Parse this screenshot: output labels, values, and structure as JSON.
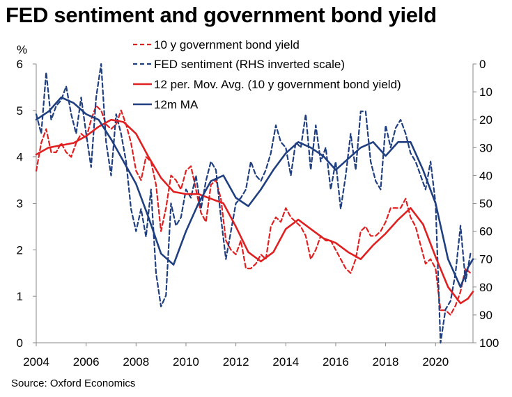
{
  "chart_data": {
    "type": "line",
    "title": "FED sentiment and government bond yield",
    "source": "Source: Oxford Economics",
    "y_left": {
      "unit_label": "%",
      "range": [
        0,
        6
      ],
      "ticks": [
        0,
        1,
        2,
        3,
        4,
        5,
        6
      ]
    },
    "y_right": {
      "label": "RHS inverted scale",
      "range": [
        0,
        100
      ],
      "inverted": true,
      "ticks": [
        0,
        10,
        20,
        30,
        40,
        50,
        60,
        70,
        80,
        90,
        100
      ]
    },
    "x": {
      "range": [
        2004,
        2021.5
      ],
      "ticks": [
        2004,
        2006,
        2008,
        2010,
        2012,
        2014,
        2016,
        2018,
        2020
      ]
    },
    "colors": {
      "red": "#e02020",
      "blue": "#1f3f80"
    },
    "series": [
      {
        "name": "10 y government bond yield",
        "axis": "left",
        "color": "#e02020",
        "style": "dashed",
        "points": [
          [
            2004.0,
            3.7
          ],
          [
            2004.2,
            4.3
          ],
          [
            2004.4,
            4.6
          ],
          [
            2004.6,
            4.1
          ],
          [
            2004.8,
            4.1
          ],
          [
            2005.0,
            4.3
          ],
          [
            2005.2,
            4.1
          ],
          [
            2005.4,
            4.0
          ],
          [
            2005.6,
            4.3
          ],
          [
            2005.8,
            4.5
          ],
          [
            2006.0,
            4.4
          ],
          [
            2006.2,
            4.8
          ],
          [
            2006.4,
            5.1
          ],
          [
            2006.6,
            5.0
          ],
          [
            2006.8,
            4.7
          ],
          [
            2007.0,
            4.6
          ],
          [
            2007.2,
            4.7
          ],
          [
            2007.4,
            5.0
          ],
          [
            2007.6,
            4.7
          ],
          [
            2007.8,
            4.3
          ],
          [
            2008.0,
            3.7
          ],
          [
            2008.2,
            3.5
          ],
          [
            2008.4,
            4.0
          ],
          [
            2008.6,
            3.9
          ],
          [
            2008.8,
            3.4
          ],
          [
            2009.0,
            2.4
          ],
          [
            2009.2,
            2.9
          ],
          [
            2009.4,
            3.6
          ],
          [
            2009.6,
            3.5
          ],
          [
            2009.8,
            3.3
          ],
          [
            2010.0,
            3.7
          ],
          [
            2010.2,
            3.8
          ],
          [
            2010.4,
            3.3
          ],
          [
            2010.6,
            2.8
          ],
          [
            2010.8,
            2.6
          ],
          [
            2011.0,
            3.4
          ],
          [
            2011.2,
            3.5
          ],
          [
            2011.4,
            3.1
          ],
          [
            2011.6,
            2.2
          ],
          [
            2011.8,
            2.0
          ],
          [
            2012.0,
            1.9
          ],
          [
            2012.2,
            2.2
          ],
          [
            2012.4,
            1.6
          ],
          [
            2012.6,
            1.6
          ],
          [
            2012.8,
            1.7
          ],
          [
            2013.0,
            1.9
          ],
          [
            2013.2,
            1.8
          ],
          [
            2013.4,
            2.5
          ],
          [
            2013.6,
            2.7
          ],
          [
            2013.8,
            2.6
          ],
          [
            2014.0,
            2.9
          ],
          [
            2014.2,
            2.7
          ],
          [
            2014.4,
            2.6
          ],
          [
            2014.6,
            2.5
          ],
          [
            2014.8,
            2.3
          ],
          [
            2015.0,
            1.8
          ],
          [
            2015.2,
            2.0
          ],
          [
            2015.4,
            2.3
          ],
          [
            2015.6,
            2.2
          ],
          [
            2015.8,
            2.2
          ],
          [
            2016.0,
            2.0
          ],
          [
            2016.2,
            1.8
          ],
          [
            2016.4,
            1.6
          ],
          [
            2016.6,
            1.5
          ],
          [
            2016.8,
            1.8
          ],
          [
            2017.0,
            2.4
          ],
          [
            2017.2,
            2.5
          ],
          [
            2017.4,
            2.3
          ],
          [
            2017.6,
            2.3
          ],
          [
            2017.8,
            2.4
          ],
          [
            2018.0,
            2.6
          ],
          [
            2018.2,
            2.9
          ],
          [
            2018.4,
            2.9
          ],
          [
            2018.6,
            2.9
          ],
          [
            2018.8,
            3.1
          ],
          [
            2019.0,
            2.7
          ],
          [
            2019.2,
            2.5
          ],
          [
            2019.4,
            2.1
          ],
          [
            2019.6,
            1.7
          ],
          [
            2019.8,
            1.8
          ],
          [
            2020.0,
            1.6
          ],
          [
            2020.2,
            0.7
          ],
          [
            2020.4,
            0.7
          ],
          [
            2020.6,
            0.6
          ],
          [
            2020.8,
            0.8
          ],
          [
            2021.0,
            1.1
          ],
          [
            2021.2,
            1.6
          ],
          [
            2021.4,
            1.5
          ]
        ]
      },
      {
        "name": "FED sentiment (RHS inverted scale)",
        "axis": "right",
        "color": "#1f3f80",
        "style": "dashed",
        "points": [
          [
            2004.0,
            18
          ],
          [
            2004.2,
            25
          ],
          [
            2004.4,
            3
          ],
          [
            2004.6,
            20
          ],
          [
            2004.8,
            15
          ],
          [
            2005.0,
            13
          ],
          [
            2005.2,
            8
          ],
          [
            2005.4,
            18
          ],
          [
            2005.6,
            25
          ],
          [
            2005.8,
            12
          ],
          [
            2006.0,
            25
          ],
          [
            2006.2,
            37
          ],
          [
            2006.4,
            12
          ],
          [
            2006.6,
            0
          ],
          [
            2006.8,
            28
          ],
          [
            2007.0,
            40
          ],
          [
            2007.2,
            18
          ],
          [
            2007.4,
            25
          ],
          [
            2007.6,
            35
          ],
          [
            2007.8,
            52
          ],
          [
            2008.0,
            60
          ],
          [
            2008.2,
            52
          ],
          [
            2008.4,
            62
          ],
          [
            2008.6,
            45
          ],
          [
            2008.8,
            75
          ],
          [
            2009.0,
            87
          ],
          [
            2009.2,
            83
          ],
          [
            2009.4,
            50
          ],
          [
            2009.6,
            58
          ],
          [
            2009.8,
            55
          ],
          [
            2010.0,
            45
          ],
          [
            2010.2,
            48
          ],
          [
            2010.4,
            40
          ],
          [
            2010.6,
            52
          ],
          [
            2010.8,
            42
          ],
          [
            2011.0,
            35
          ],
          [
            2011.2,
            38
          ],
          [
            2011.4,
            55
          ],
          [
            2011.6,
            70
          ],
          [
            2011.8,
            60
          ],
          [
            2012.0,
            50
          ],
          [
            2012.2,
            48
          ],
          [
            2012.4,
            45
          ],
          [
            2012.6,
            35
          ],
          [
            2012.8,
            40
          ],
          [
            2013.0,
            42
          ],
          [
            2013.2,
            38
          ],
          [
            2013.4,
            32
          ],
          [
            2013.6,
            22
          ],
          [
            2013.8,
            28
          ],
          [
            2014.0,
            30
          ],
          [
            2014.2,
            40
          ],
          [
            2014.4,
            28
          ],
          [
            2014.6,
            30
          ],
          [
            2014.8,
            18
          ],
          [
            2015.0,
            38
          ],
          [
            2015.2,
            22
          ],
          [
            2015.4,
            35
          ],
          [
            2015.6,
            30
          ],
          [
            2015.8,
            45
          ],
          [
            2016.0,
            35
          ],
          [
            2016.2,
            52
          ],
          [
            2016.4,
            40
          ],
          [
            2016.6,
            25
          ],
          [
            2016.8,
            38
          ],
          [
            2017.0,
            17
          ],
          [
            2017.2,
            17
          ],
          [
            2017.4,
            35
          ],
          [
            2017.6,
            42
          ],
          [
            2017.8,
            45
          ],
          [
            2018.0,
            22
          ],
          [
            2018.2,
            30
          ],
          [
            2018.4,
            23
          ],
          [
            2018.6,
            20
          ],
          [
            2018.8,
            25
          ],
          [
            2019.0,
            32
          ],
          [
            2019.2,
            35
          ],
          [
            2019.4,
            40
          ],
          [
            2019.6,
            45
          ],
          [
            2019.8,
            35
          ],
          [
            2020.0,
            50
          ],
          [
            2020.2,
            100
          ],
          [
            2020.4,
            88
          ],
          [
            2020.6,
            85
          ],
          [
            2020.8,
            75
          ],
          [
            2021.0,
            58
          ],
          [
            2021.2,
            78
          ],
          [
            2021.4,
            68
          ]
        ]
      },
      {
        "name": "12 per. Mov. Avg. (10 y government bond yield)",
        "axis": "left",
        "color": "#e02020",
        "style": "solid",
        "points": [
          [
            2004.0,
            4.05
          ],
          [
            2004.5,
            4.2
          ],
          [
            2005.0,
            4.25
          ],
          [
            2005.5,
            4.3
          ],
          [
            2006.0,
            4.45
          ],
          [
            2006.5,
            4.65
          ],
          [
            2007.0,
            4.8
          ],
          [
            2007.5,
            4.75
          ],
          [
            2008.0,
            4.5
          ],
          [
            2008.5,
            4.0
          ],
          [
            2009.0,
            3.55
          ],
          [
            2009.5,
            3.25
          ],
          [
            2010.0,
            3.2
          ],
          [
            2010.5,
            3.2
          ],
          [
            2011.0,
            3.1
          ],
          [
            2011.5,
            3.0
          ],
          [
            2012.0,
            2.5
          ],
          [
            2012.5,
            1.95
          ],
          [
            2013.0,
            1.75
          ],
          [
            2013.5,
            1.95
          ],
          [
            2014.0,
            2.45
          ],
          [
            2014.5,
            2.65
          ],
          [
            2015.0,
            2.45
          ],
          [
            2015.5,
            2.25
          ],
          [
            2016.0,
            2.15
          ],
          [
            2016.5,
            1.95
          ],
          [
            2017.0,
            1.8
          ],
          [
            2017.5,
            2.1
          ],
          [
            2018.0,
            2.35
          ],
          [
            2018.5,
            2.65
          ],
          [
            2019.0,
            2.9
          ],
          [
            2019.5,
            2.55
          ],
          [
            2020.0,
            1.85
          ],
          [
            2020.5,
            1.2
          ],
          [
            2021.0,
            0.85
          ],
          [
            2021.3,
            0.95
          ],
          [
            2021.5,
            1.1
          ]
        ]
      },
      {
        "name": "12m MA",
        "axis": "right",
        "color": "#1f3f80",
        "style": "solid",
        "points": [
          [
            2004.0,
            20
          ],
          [
            2004.5,
            17
          ],
          [
            2005.0,
            12
          ],
          [
            2005.5,
            14
          ],
          [
            2006.0,
            18
          ],
          [
            2006.5,
            20
          ],
          [
            2007.0,
            27
          ],
          [
            2007.5,
            35
          ],
          [
            2008.0,
            43
          ],
          [
            2008.5,
            55
          ],
          [
            2009.0,
            68
          ],
          [
            2009.5,
            72
          ],
          [
            2010.0,
            60
          ],
          [
            2010.5,
            50
          ],
          [
            2011.0,
            42
          ],
          [
            2011.5,
            40
          ],
          [
            2012.0,
            48
          ],
          [
            2012.5,
            51
          ],
          [
            2013.0,
            45
          ],
          [
            2013.5,
            38
          ],
          [
            2014.0,
            32
          ],
          [
            2014.5,
            28
          ],
          [
            2015.0,
            30
          ],
          [
            2015.5,
            33
          ],
          [
            2016.0,
            38
          ],
          [
            2016.5,
            34
          ],
          [
            2017.0,
            30
          ],
          [
            2017.5,
            28
          ],
          [
            2018.0,
            33
          ],
          [
            2018.5,
            28
          ],
          [
            2019.0,
            28
          ],
          [
            2019.5,
            38
          ],
          [
            2020.0,
            50
          ],
          [
            2020.5,
            70
          ],
          [
            2021.0,
            80
          ],
          [
            2021.3,
            73
          ],
          [
            2021.5,
            70
          ]
        ]
      }
    ]
  }
}
